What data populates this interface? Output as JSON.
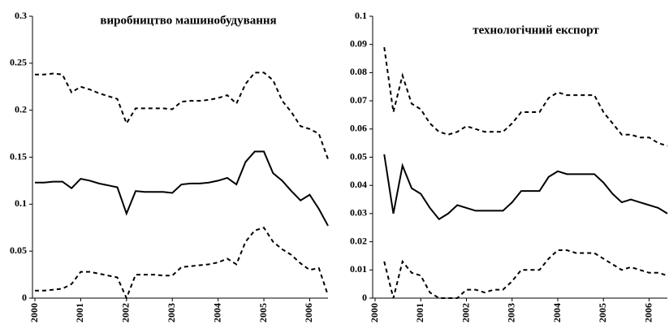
{
  "chart_data": [
    {
      "type": "line",
      "title": "виробництво машинобудування",
      "x": [
        2000,
        2000.2,
        2000.4,
        2000.6,
        2000.8,
        2001,
        2001.2,
        2001.4,
        2001.6,
        2001.8,
        2002,
        2002.2,
        2002.4,
        2002.6,
        2002.8,
        2003,
        2003.2,
        2003.4,
        2003.6,
        2003.8,
        2004,
        2004.2,
        2004.4,
        2004.6,
        2004.8,
        2005,
        2005.2,
        2005.4,
        2005.6,
        2005.8,
        2006,
        2006.2,
        2006.4
      ],
      "series": [
        {
          "color": "#000000",
          "style": "dashed",
          "values": [
            0.238,
            0.238,
            0.239,
            0.238,
            0.219,
            0.225,
            0.222,
            0.218,
            0.215,
            0.212,
            0.186,
            0.202,
            0.202,
            0.202,
            0.202,
            0.201,
            0.209,
            0.21,
            0.21,
            0.211,
            0.213,
            0.216,
            0.207,
            0.228,
            0.24,
            0.24,
            0.232,
            0.21,
            0.198,
            0.183,
            0.18,
            0.175,
            0.148
          ]
        },
        {
          "color": "#000000",
          "style": "solid",
          "values": [
            0.123,
            0.123,
            0.124,
            0.124,
            0.117,
            0.127,
            0.125,
            0.122,
            0.12,
            0.118,
            0.09,
            0.114,
            0.113,
            0.113,
            0.113,
            0.112,
            0.121,
            0.122,
            0.122,
            0.123,
            0.125,
            0.128,
            0.121,
            0.145,
            0.156,
            0.156,
            0.133,
            0.125,
            0.114,
            0.104,
            0.11,
            0.095,
            0.077
          ]
        },
        {
          "color": "#000000",
          "style": "dashed",
          "values": [
            0.008,
            0.008,
            0.009,
            0.01,
            0.015,
            0.028,
            0.028,
            0.026,
            0.024,
            0.022,
            0.0,
            0.025,
            0.025,
            0.025,
            0.024,
            0.024,
            0.033,
            0.034,
            0.035,
            0.036,
            0.038,
            0.042,
            0.036,
            0.06,
            0.072,
            0.075,
            0.06,
            0.052,
            0.046,
            0.037,
            0.03,
            0.032,
            0.003
          ]
        }
      ],
      "xlim": [
        2000,
        2006.4
      ],
      "xticks": [
        2000,
        2001,
        2002,
        2003,
        2004,
        2005,
        2006
      ],
      "ylim": [
        0,
        0.3
      ],
      "yticks": [
        0,
        0.05,
        0.1,
        0.15,
        0.2,
        0.25,
        0.3
      ],
      "grid": false
    },
    {
      "type": "line",
      "title": "технологічний експорт",
      "x": [
        2000.2,
        2000.4,
        2000.6,
        2000.8,
        2001,
        2001.2,
        2001.4,
        2001.6,
        2001.8,
        2002,
        2002.2,
        2002.4,
        2002.6,
        2002.8,
        2003,
        2003.2,
        2003.4,
        2003.6,
        2003.8,
        2004,
        2004.2,
        2004.4,
        2004.6,
        2004.8,
        2005,
        2005.2,
        2005.4,
        2005.6,
        2005.8,
        2006,
        2006.2,
        2006.4
      ],
      "series": [
        {
          "color": "#000000",
          "style": "dashed",
          "values": [
            0.089,
            0.066,
            0.079,
            0.069,
            0.067,
            0.062,
            0.059,
            0.058,
            0.059,
            0.061,
            0.06,
            0.059,
            0.059,
            0.059,
            0.062,
            0.066,
            0.066,
            0.066,
            0.071,
            0.073,
            0.072,
            0.072,
            0.072,
            0.072,
            0.066,
            0.062,
            0.058,
            0.058,
            0.057,
            0.057,
            0.055,
            0.054
          ]
        },
        {
          "color": "#000000",
          "style": "solid",
          "values": [
            0.051,
            0.03,
            0.047,
            0.039,
            0.037,
            0.032,
            0.028,
            0.03,
            0.033,
            0.032,
            0.031,
            0.031,
            0.031,
            0.031,
            0.034,
            0.038,
            0.038,
            0.038,
            0.043,
            0.045,
            0.044,
            0.044,
            0.044,
            0.044,
            0.041,
            0.037,
            0.034,
            0.035,
            0.034,
            0.033,
            0.032,
            0.03
          ]
        },
        {
          "color": "#000000",
          "style": "dashed",
          "values": [
            0.013,
            0.0,
            0.013,
            0.009,
            0.008,
            0.002,
            0.0,
            0.0,
            0.0,
            0.003,
            0.003,
            0.002,
            0.003,
            0.003,
            0.006,
            0.01,
            0.01,
            0.01,
            0.014,
            0.017,
            0.017,
            0.016,
            0.016,
            0.016,
            0.014,
            0.012,
            0.01,
            0.011,
            0.01,
            0.009,
            0.009,
            0.008
          ]
        }
      ],
      "xlim": [
        2000,
        2006.4
      ],
      "xticks": [
        2000,
        2001,
        2002,
        2003,
        2004,
        2005,
        2006
      ],
      "ylim": [
        0,
        0.1
      ],
      "yticks": [
        0,
        0.01,
        0.02,
        0.03,
        0.04,
        0.05,
        0.06,
        0.07,
        0.08,
        0.09,
        0.1
      ],
      "grid": false
    }
  ]
}
